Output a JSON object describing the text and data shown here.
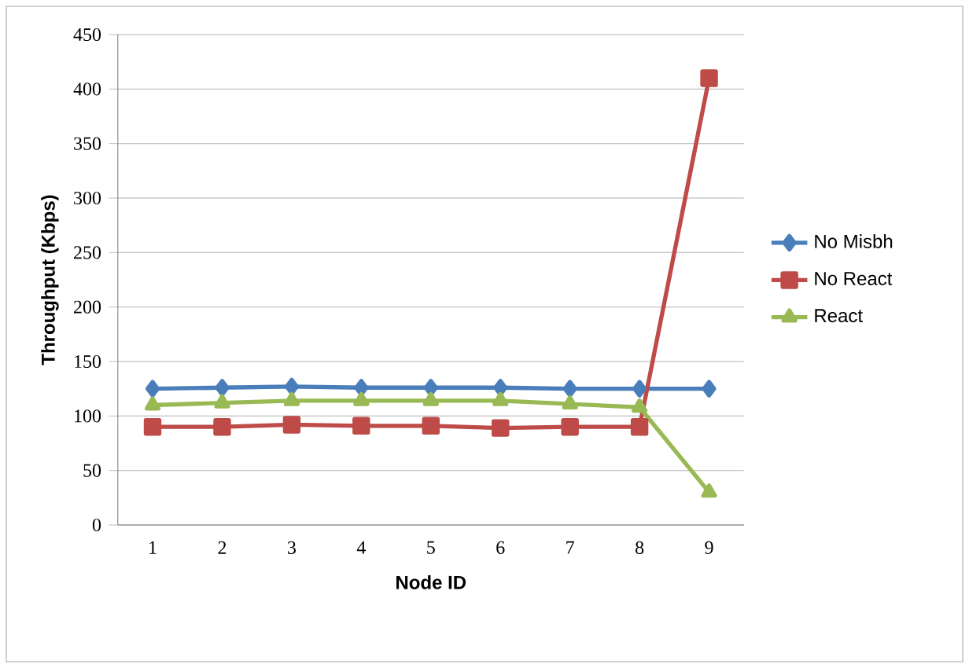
{
  "chart_data": {
    "type": "line",
    "xlabel": "Node ID",
    "ylabel": "Throughput  (Kbps)",
    "categories": [
      "1",
      "2",
      "3",
      "4",
      "5",
      "6",
      "7",
      "8",
      "9"
    ],
    "series": [
      {
        "name": "No Misbh",
        "color": "#4a7ebb",
        "marker": "diamond",
        "values": [
          125,
          126,
          127,
          126,
          126,
          126,
          125,
          125,
          125
        ]
      },
      {
        "name": "No React",
        "color": "#be4b48",
        "marker": "square",
        "values": [
          90,
          90,
          92,
          91,
          91,
          89,
          90,
          90,
          410
        ]
      },
      {
        "name": "React",
        "color": "#98b954",
        "marker": "triangle",
        "values": [
          110,
          112,
          114,
          114,
          114,
          114,
          111,
          108,
          30
        ]
      }
    ],
    "ylim": [
      0,
      450
    ],
    "yticks": [
      0,
      50,
      100,
      150,
      200,
      250,
      300,
      350,
      400,
      450
    ],
    "grid": "y",
    "legend": "right",
    "line_style": "solid"
  }
}
